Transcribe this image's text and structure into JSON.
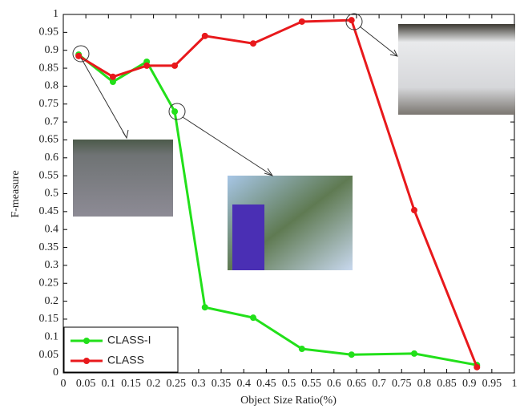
{
  "chart_data": {
    "type": "line",
    "x_label": "Object Size Ratio(%)",
    "y_label": "F-measure",
    "xlim": [
      0,
      1
    ],
    "ylim": [
      0,
      1
    ],
    "xticks": [
      0,
      0.05,
      0.1,
      0.15,
      0.2,
      0.25,
      0.3,
      0.35,
      0.4,
      0.45,
      0.5,
      0.55,
      0.6,
      0.65,
      0.7,
      0.75,
      0.8,
      0.85,
      0.9,
      0.95,
      1
    ],
    "yticks": [
      0,
      0.05,
      0.1,
      0.15,
      0.2,
      0.25,
      0.3,
      0.35,
      0.4,
      0.45,
      0.5,
      0.55,
      0.6,
      0.65,
      0.7,
      0.75,
      0.8,
      0.85,
      0.9,
      0.95,
      1
    ],
    "grid": false,
    "legend": "lower left",
    "series": [
      {
        "name": "CLASS-I",
        "color": "#22e01a",
        "x": [
          0.034,
          0.11,
          0.185,
          0.247,
          0.314,
          0.421,
          0.529,
          0.639,
          0.778,
          0.917
        ],
        "values": [
          0.888,
          0.812,
          0.868,
          0.729,
          0.183,
          0.154,
          0.067,
          0.051,
          0.054,
          0.022
        ]
      },
      {
        "name": "CLASS",
        "color": "#e8191c",
        "x": [
          0.034,
          0.11,
          0.185,
          0.247,
          0.314,
          0.421,
          0.529,
          0.639,
          0.778,
          0.917
        ],
        "values": [
          0.884,
          0.826,
          0.857,
          0.857,
          0.94,
          0.919,
          0.98,
          0.984,
          0.454,
          0.016
        ]
      }
    ]
  }
}
